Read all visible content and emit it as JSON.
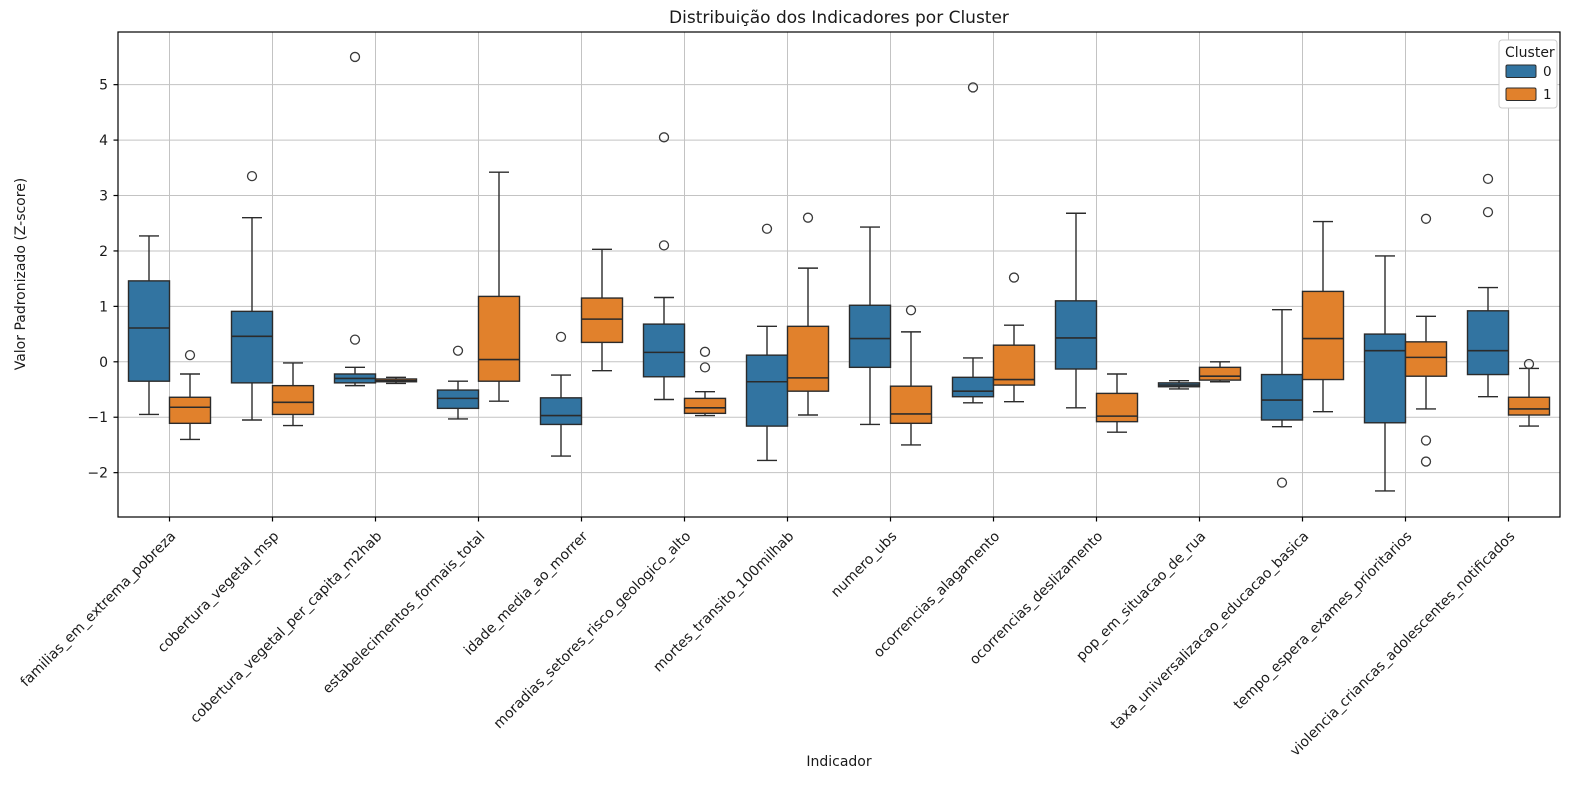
{
  "figure": {
    "title": "Distribuição dos Indicadores por Cluster",
    "xlabel": "Indicador",
    "ylabel": "Valor Padronizado (Z-score)"
  },
  "chart_data": {
    "type": "boxplot",
    "title": "Distribuição dos Indicadores por Cluster",
    "xlabel": "Indicador",
    "ylabel": "Valor Padronizado (Z-score)",
    "ylim": [
      -2.8,
      5.95
    ],
    "yticks": [
      -2,
      -1,
      0,
      1,
      2,
      3,
      4,
      5
    ],
    "grid": true,
    "legend": {
      "title": "Cluster",
      "position": "upper-right",
      "entries": [
        {
          "label": "0",
          "color": "#3274a1"
        },
        {
          "label": "1",
          "color": "#e1812c"
        }
      ]
    },
    "categories": [
      "familias_em_extrema_pobreza",
      "cobertura_vegetal_msp",
      "cobertura_vegetal_per_capita_m2hab",
      "estabelecimentos_formais_total",
      "idade_media_ao_morrer",
      "moradias_setores_risco_geologico_alto",
      "mortes_transito_100milhab",
      "numero_ubs",
      "ocorrencias_alagamento",
      "ocorrencias_deslizamento",
      "pop_em_situacao_de_rua",
      "taxa_universalizacao_educacao_basica",
      "tempo_espera_exames_prioritarios",
      "violencia_criancas_adolescentes_notificados"
    ],
    "series": [
      {
        "name": "0",
        "color": "#3274a1",
        "boxes": [
          {
            "whislo": -0.95,
            "q1": -0.35,
            "med": 0.61,
            "q3": 1.46,
            "whishi": 2.27,
            "fliers": []
          },
          {
            "whislo": -1.05,
            "q1": -0.38,
            "med": 0.46,
            "q3": 0.91,
            "whishi": 2.6,
            "fliers": [
              3.35
            ]
          },
          {
            "whislo": -0.43,
            "q1": -0.38,
            "med": -0.3,
            "q3": -0.22,
            "whishi": -0.1,
            "fliers": [
              0.4,
              5.5
            ]
          },
          {
            "whislo": -1.03,
            "q1": -0.84,
            "med": -0.66,
            "q3": -0.51,
            "whishi": -0.35,
            "fliers": [
              0.2
            ]
          },
          {
            "whislo": -1.7,
            "q1": -1.13,
            "med": -0.97,
            "q3": -0.65,
            "whishi": -0.24,
            "fliers": [
              0.45
            ]
          },
          {
            "whislo": -0.68,
            "q1": -0.27,
            "med": 0.17,
            "q3": 0.68,
            "whishi": 1.16,
            "fliers": [
              2.1,
              4.05
            ]
          },
          {
            "whislo": -1.78,
            "q1": -1.16,
            "med": -0.36,
            "q3": 0.12,
            "whishi": 0.64,
            "fliers": [
              2.4
            ]
          },
          {
            "whislo": -1.13,
            "q1": -0.1,
            "med": 0.42,
            "q3": 1.02,
            "whishi": 2.43,
            "fliers": []
          },
          {
            "whislo": -0.74,
            "q1": -0.63,
            "med": -0.53,
            "q3": -0.28,
            "whishi": 0.07,
            "fliers": [
              4.95
            ]
          },
          {
            "whislo": -0.83,
            "q1": -0.13,
            "med": 0.43,
            "q3": 1.1,
            "whishi": 2.68,
            "fliers": []
          },
          {
            "whislo": -0.49,
            "q1": -0.45,
            "med": -0.42,
            "q3": -0.38,
            "whishi": -0.34,
            "fliers": []
          },
          {
            "whislo": -1.17,
            "q1": -1.05,
            "med": -0.69,
            "q3": -0.23,
            "whishi": 0.94,
            "fliers": [
              -2.18
            ]
          },
          {
            "whislo": -2.33,
            "q1": -1.1,
            "med": 0.2,
            "q3": 0.5,
            "whishi": 1.91,
            "fliers": []
          },
          {
            "whislo": -0.63,
            "q1": -0.23,
            "med": 0.2,
            "q3": 0.92,
            "whishi": 1.34,
            "fliers": [
              2.7,
              3.3
            ]
          }
        ]
      },
      {
        "name": "1",
        "color": "#e1812c",
        "boxes": [
          {
            "whislo": -1.4,
            "q1": -1.11,
            "med": -0.82,
            "q3": -0.64,
            "whishi": -0.22,
            "fliers": [
              0.12
            ]
          },
          {
            "whislo": -1.15,
            "q1": -0.95,
            "med": -0.73,
            "q3": -0.43,
            "whishi": -0.02,
            "fliers": []
          },
          {
            "whislo": -0.39,
            "q1": -0.36,
            "med": -0.34,
            "q3": -0.31,
            "whishi": -0.28,
            "fliers": []
          },
          {
            "whislo": -0.71,
            "q1": -0.35,
            "med": 0.04,
            "q3": 1.18,
            "whishi": 3.42,
            "fliers": []
          },
          {
            "whislo": -0.16,
            "q1": 0.35,
            "med": 0.77,
            "q3": 1.15,
            "whishi": 2.03,
            "fliers": []
          },
          {
            "whislo": -0.97,
            "q1": -0.93,
            "med": -0.83,
            "q3": -0.66,
            "whishi": -0.54,
            "fliers": [
              0.18,
              -0.1
            ]
          },
          {
            "whislo": -0.96,
            "q1": -0.53,
            "med": -0.29,
            "q3": 0.64,
            "whishi": 1.69,
            "fliers": [
              2.6
            ]
          },
          {
            "whislo": -1.5,
            "q1": -1.11,
            "med": -0.94,
            "q3": -0.44,
            "whishi": 0.54,
            "fliers": [
              0.93
            ]
          },
          {
            "whislo": -0.72,
            "q1": -0.42,
            "med": -0.32,
            "q3": 0.3,
            "whishi": 0.66,
            "fliers": [
              1.52
            ]
          },
          {
            "whislo": -1.27,
            "q1": -1.08,
            "med": -0.98,
            "q3": -0.57,
            "whishi": -0.22,
            "fliers": []
          },
          {
            "whislo": -0.36,
            "q1": -0.33,
            "med": -0.26,
            "q3": -0.1,
            "whishi": 0.0,
            "fliers": []
          },
          {
            "whislo": -0.9,
            "q1": -0.32,
            "med": 0.42,
            "q3": 1.27,
            "whishi": 2.53,
            "fliers": []
          },
          {
            "whislo": -0.85,
            "q1": -0.26,
            "med": 0.08,
            "q3": 0.36,
            "whishi": 0.82,
            "fliers": [
              2.58,
              -1.42,
              -1.8
            ]
          },
          {
            "whislo": -1.16,
            "q1": -0.96,
            "med": -0.85,
            "q3": -0.64,
            "whishi": -0.12,
            "fliers": [
              -0.04
            ]
          }
        ]
      }
    ],
    "style": {
      "edge_color": "#2b2b2b",
      "grid_color": "#c3c3c3",
      "spine_color": "#000000",
      "flier_color": "#3a3a3a",
      "background": "#ffffff"
    }
  }
}
